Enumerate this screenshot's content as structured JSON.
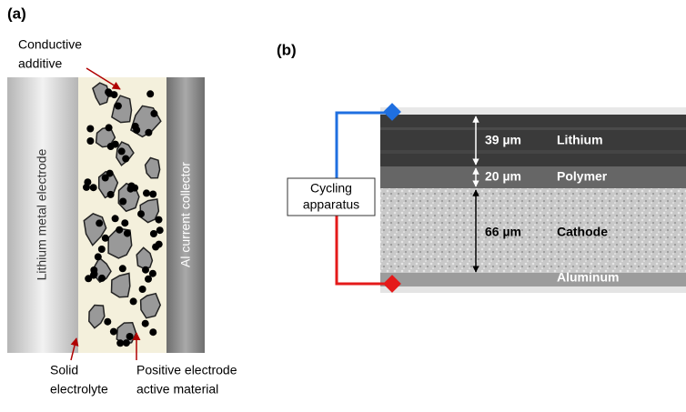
{
  "panel_a": {
    "label": "(a)",
    "electrode_left": "Lithium metal electrode",
    "electrode_right": "Al current collector",
    "callouts": [
      {
        "lines": [
          "Conductive",
          "additive"
        ]
      },
      {
        "lines": [
          "Solid",
          "electrolyte"
        ]
      },
      {
        "lines": [
          "Positive electrode",
          "active material"
        ]
      }
    ]
  },
  "panel_b": {
    "label": "(b)",
    "apparatus": {
      "lines": [
        "Cycling",
        "apparatus"
      ]
    },
    "layers": [
      {
        "thickness": "39 µm",
        "name": "Lithium"
      },
      {
        "thickness": "20 µm",
        "name": "Polymer"
      },
      {
        "thickness": "66 µm",
        "name": "Cathode"
      },
      {
        "name": "Aluminum"
      }
    ]
  }
}
